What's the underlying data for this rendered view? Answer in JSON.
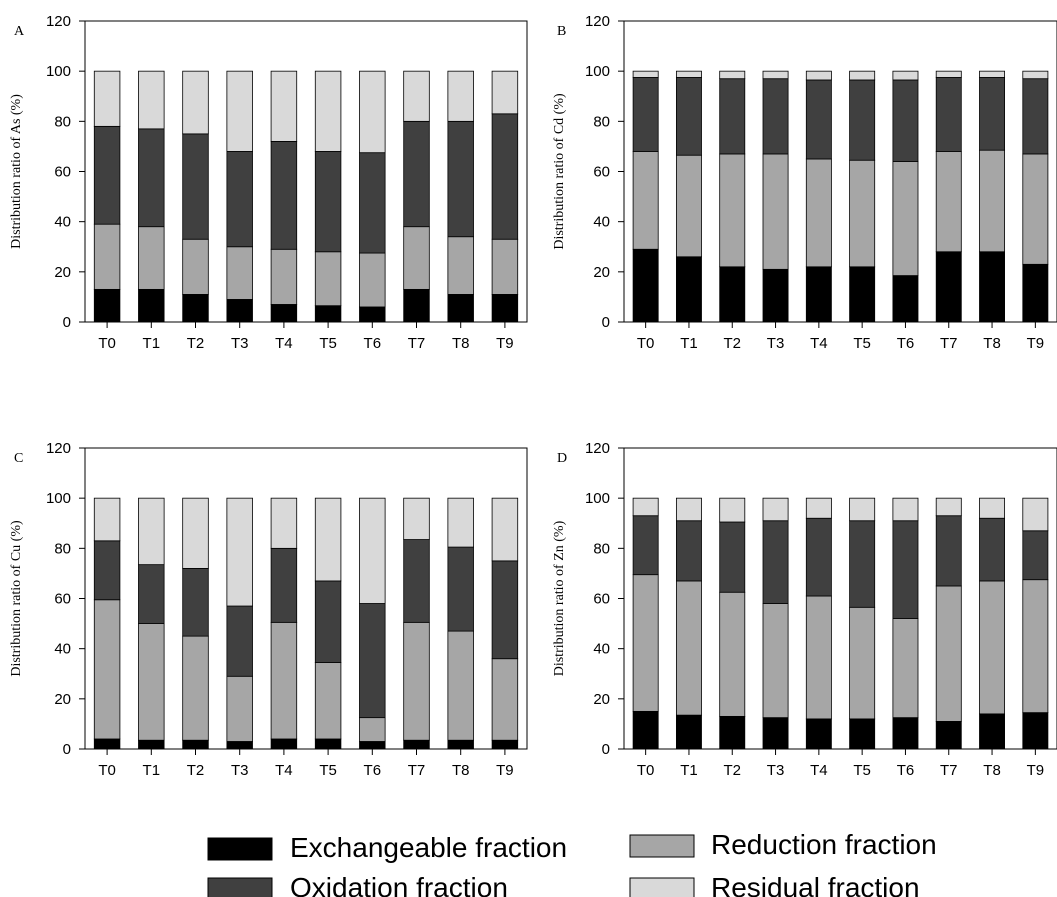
{
  "colors": {
    "exchangeable": "#000000",
    "reduction": "#a6a6a6",
    "oxidation": "#404040",
    "residual": "#d9d9d9"
  },
  "legend": {
    "items": [
      {
        "label": "Exchangeable fraction",
        "color_key": "exchangeable"
      },
      {
        "label": "Reduction fraction",
        "color_key": "reduction"
      },
      {
        "label": "Oxidation fraction",
        "color_key": "oxidation"
      },
      {
        "label": "Residual fraction",
        "color_key": "residual"
      }
    ]
  },
  "chart_data": [
    {
      "panel": "A",
      "type": "bar",
      "stacked": true,
      "ylabel": "Distribution ratio of As (%)",
      "ylim": [
        0,
        120
      ],
      "yticks": [
        0,
        20,
        40,
        60,
        80,
        100,
        120
      ],
      "categories": [
        "T0",
        "T1",
        "T2",
        "T3",
        "T4",
        "T5",
        "T6",
        "T7",
        "T8",
        "T9"
      ],
      "series": [
        {
          "name": "Exchangeable fraction",
          "values": [
            13,
            13,
            11,
            9,
            7,
            6.5,
            6,
            13,
            11,
            11
          ]
        },
        {
          "name": "Reduction fraction",
          "values": [
            26,
            25,
            22,
            21,
            22,
            21.5,
            21.5,
            25,
            23,
            22
          ]
        },
        {
          "name": "Oxidation fraction",
          "values": [
            39,
            39,
            42,
            38,
            43,
            40,
            40,
            42,
            46,
            50
          ]
        },
        {
          "name": "Residual fraction",
          "values": [
            22,
            23,
            25,
            32,
            28,
            32,
            32.5,
            20,
            20,
            17
          ]
        }
      ]
    },
    {
      "panel": "B",
      "type": "bar",
      "stacked": true,
      "ylabel": "Distribution ratio of Cd (%)",
      "ylim": [
        0,
        120
      ],
      "yticks": [
        0,
        20,
        40,
        60,
        80,
        100,
        120
      ],
      "categories": [
        "T0",
        "T1",
        "T2",
        "T3",
        "T4",
        "T5",
        "T6",
        "T7",
        "T8",
        "T9"
      ],
      "series": [
        {
          "name": "Exchangeable fraction",
          "values": [
            29,
            26,
            22,
            21,
            22,
            22,
            18.5,
            28,
            28,
            23
          ]
        },
        {
          "name": "Reduction fraction",
          "values": [
            39,
            40.5,
            45,
            46,
            43,
            42.5,
            45.5,
            40,
            40.5,
            44
          ]
        },
        {
          "name": "Oxidation fraction",
          "values": [
            29.5,
            31,
            30,
            30,
            31.5,
            32,
            32.5,
            29.5,
            29,
            30
          ]
        },
        {
          "name": "Residual fraction",
          "values": [
            2.5,
            2.5,
            3,
            3,
            3.5,
            3.5,
            3.5,
            2.5,
            2.5,
            3
          ]
        }
      ]
    },
    {
      "panel": "C",
      "type": "bar",
      "stacked": true,
      "ylabel": "Distribution ratio of Cu (%)",
      "ylim": [
        0,
        120
      ],
      "yticks": [
        0,
        20,
        40,
        60,
        80,
        100,
        120
      ],
      "categories": [
        "T0",
        "T1",
        "T2",
        "T3",
        "T4",
        "T5",
        "T6",
        "T7",
        "T8",
        "T9"
      ],
      "series": [
        {
          "name": "Exchangeable fraction",
          "values": [
            4,
            3.5,
            3.5,
            3,
            4,
            4,
            3,
            3.5,
            3.5,
            3.5
          ]
        },
        {
          "name": "Reduction fraction",
          "values": [
            55.5,
            46.5,
            41.5,
            26,
            46.5,
            30.5,
            9.5,
            47,
            43.5,
            32.5
          ]
        },
        {
          "name": "Oxidation fraction",
          "values": [
            23.5,
            23.5,
            27,
            28,
            29.5,
            32.5,
            45.5,
            33,
            33.5,
            39
          ]
        },
        {
          "name": "Residual fraction",
          "values": [
            17,
            26.5,
            28,
            43,
            20,
            33,
            42,
            16.5,
            19.5,
            25
          ]
        }
      ]
    },
    {
      "panel": "D",
      "type": "bar",
      "stacked": true,
      "ylabel": "Distribution ratio of Zn (%)",
      "ylim": [
        0,
        120
      ],
      "yticks": [
        0,
        20,
        40,
        60,
        80,
        100,
        120
      ],
      "categories": [
        "T0",
        "T1",
        "T2",
        "T3",
        "T4",
        "T5",
        "T6",
        "T7",
        "T8",
        "T9"
      ],
      "series": [
        {
          "name": "Exchangeable fraction",
          "values": [
            15,
            13.5,
            13,
            12.5,
            12,
            12,
            12.5,
            11,
            14,
            14.5
          ]
        },
        {
          "name": "Reduction fraction",
          "values": [
            54.5,
            53.5,
            49.5,
            45.5,
            49,
            44.5,
            39.5,
            54,
            53,
            53
          ]
        },
        {
          "name": "Oxidation fraction",
          "values": [
            23.5,
            24,
            28,
            33,
            31,
            34.5,
            39,
            28,
            25,
            19.5
          ]
        },
        {
          "name": "Residual fraction",
          "values": [
            7,
            9,
            9.5,
            9,
            8,
            9,
            9,
            7,
            8,
            13
          ]
        }
      ]
    }
  ]
}
